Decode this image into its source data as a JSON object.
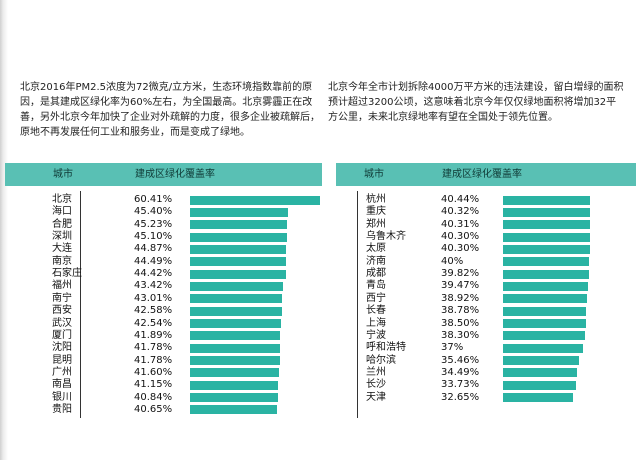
{
  "intro": {
    "left": "北京2016年PM2.5浓度为72微克/立方米，生态环境指数靠前的原因，是其建成区绿化率为60%左右，为全国最高。北京雾霾正在改善，另外北京今年加快了企业对外疏解的力度，很多企业被疏解后，原地不再发展任何工业和服务业，而是变成了绿地。",
    "right": "北京今年全市计划拆除4000万平方米的违法建设，留白增绿的面积预计超过3200公顷，这意味着北京今年仅仅绿地面积将增加32平方公里，未来北京绿地率有望在全国处于领先位置。"
  },
  "colors": {
    "header": "#59c0b4",
    "bar": "#2ab3a3"
  },
  "chart_data": [
    {
      "type": "bar",
      "orientation": "horizontal",
      "column_headers": [
        "城市",
        "建成区绿化覆盖率"
      ],
      "categories": [
        "北京",
        "海口",
        "合肥",
        "深圳",
        "大连",
        "南京",
        "石家庄",
        "福州",
        "南宁",
        "西安",
        "武汉",
        "厦门",
        "沈阳",
        "昆明",
        "广州",
        "南昌",
        "银川",
        "贵阳"
      ],
      "labels": [
        "60.41%",
        "45.40%",
        "45.23%",
        "45.10%",
        "44.87%",
        "44.49%",
        "44.42%",
        "43.42%",
        "43.01%",
        "42.58%",
        "42.54%",
        "41.89%",
        "41.78%",
        "41.78%",
        "41.60%",
        "41.15%",
        "40.84%",
        "40.65%"
      ],
      "values": [
        60.41,
        45.4,
        45.23,
        45.1,
        44.87,
        44.49,
        44.42,
        43.42,
        43.01,
        42.58,
        42.54,
        41.89,
        41.78,
        41.78,
        41.6,
        41.15,
        40.84,
        40.65
      ]
    },
    {
      "type": "bar",
      "orientation": "horizontal",
      "column_headers": [
        "城市",
        "建成区绿化覆盖率"
      ],
      "categories": [
        "杭州",
        "重庆",
        "郑州",
        "乌鲁木齐",
        "太原",
        "济南",
        "成都",
        "青岛",
        "西宁",
        "长春",
        "上海",
        "宁波",
        "呼和浩特",
        "哈尔滨",
        "兰州",
        "长沙",
        "天津"
      ],
      "labels": [
        "40.44%",
        "40.32%",
        "40.31%",
        "40.30%",
        "40.30%",
        "40%",
        "39.82%",
        "39.47%",
        "38.92%",
        "38.78%",
        "38.50%",
        "38.30%",
        "37%",
        "35.46%",
        "34.49%",
        "33.73%",
        "32.65%"
      ],
      "values": [
        40.44,
        40.32,
        40.31,
        40.3,
        40.3,
        40,
        39.82,
        39.47,
        38.92,
        38.78,
        38.5,
        38.3,
        37,
        35.46,
        34.49,
        33.73,
        32.65
      ]
    }
  ]
}
